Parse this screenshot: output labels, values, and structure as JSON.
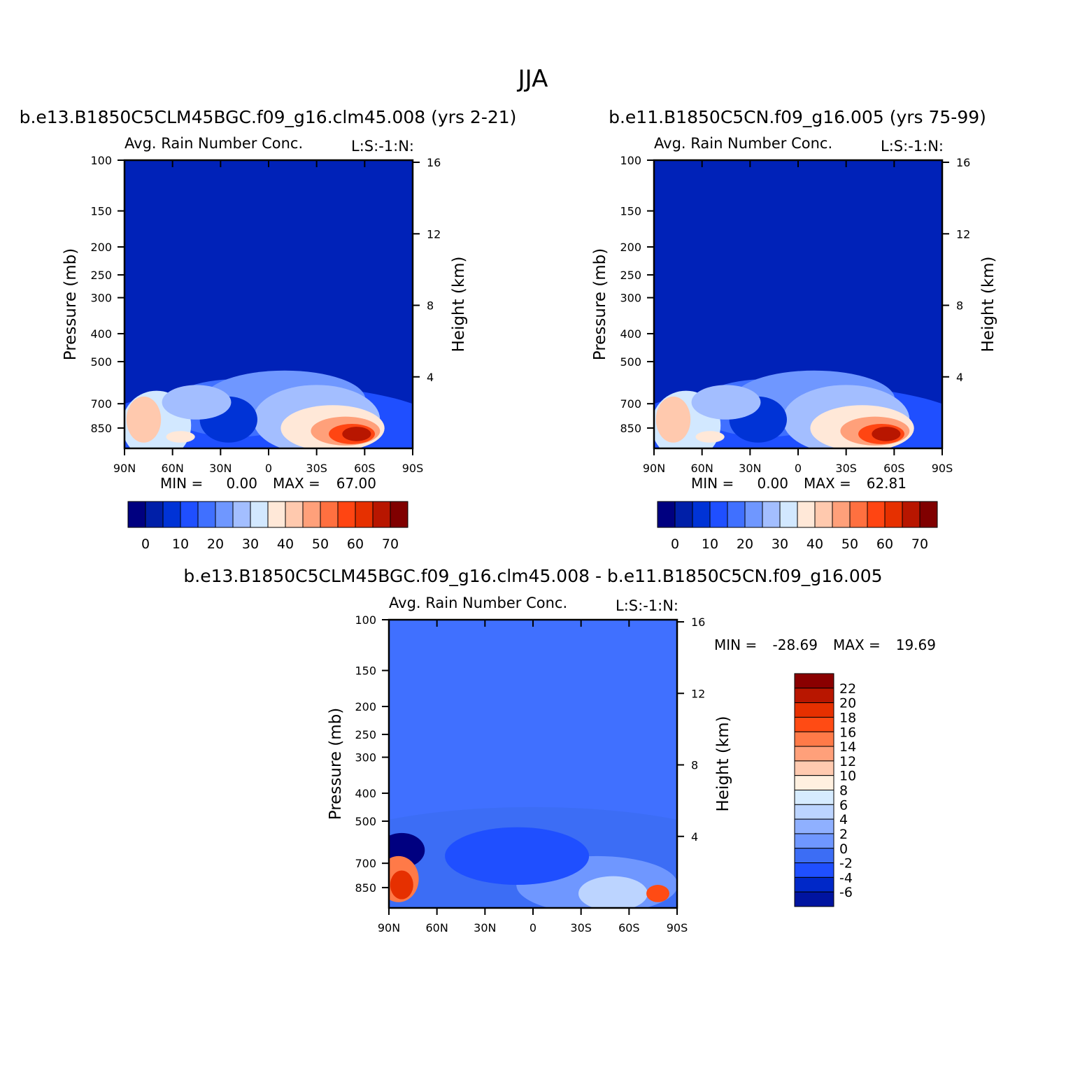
{
  "figure_title": "JJA",
  "colors": {
    "abs_scale": [
      "#000080",
      "#001fa8",
      "#0033d6",
      "#1f4fff",
      "#4070ff",
      "#6f97ff",
      "#a3beff",
      "#d2e8ff",
      "#ffe8d8",
      "#ffc9ae",
      "#ffa07a",
      "#ff7040",
      "#ff4512",
      "#e63000",
      "#b81600",
      "#800000"
    ],
    "diff_scale": [
      "#000080",
      "#0014a0",
      "#0028c8",
      "#1f4fff",
      "#3c6df5",
      "#6f97ff",
      "#8fb0ff",
      "#bcd4ff",
      "#d6ebff",
      "#fff0e0",
      "#ffcab0",
      "#ffa07a",
      "#ff7a48",
      "#ff4b14",
      "#e63000",
      "#b81600",
      "#8a0000"
    ]
  },
  "chart_data": [
    {
      "type": "heatmap",
      "title": "b.e13.B1850C5CLM45BGC.f09_g16.clm45.008 (yrs 2-21)",
      "subtitle": "Avg. Rain Number Conc.",
      "corner_label": "L:S:-1:N:",
      "ylabel": "Pressure (mb)",
      "ylabel_right": "Height (km)",
      "x_ticks": [
        "90N",
        "60N",
        "30N",
        "0",
        "30S",
        "60S",
        "90S"
      ],
      "y_ticks": [
        "100",
        "150",
        "200",
        "250",
        "300",
        "400",
        "500",
        "700",
        "850"
      ],
      "y_ticks_right": [
        "16",
        "12",
        "8",
        "4"
      ],
      "min_label": "MIN =",
      "min_value": "0.00",
      "max_label": "MAX =",
      "max_value": "67.00",
      "colorbar_labels": [
        "0",
        "10",
        "20",
        "30",
        "40",
        "50",
        "60",
        "70"
      ],
      "x_range": [
        90,
        -90
      ],
      "y_range": [
        100,
        1000
      ],
      "y_scale": "log",
      "background_level": 0
    },
    {
      "type": "heatmap",
      "title": "b.e11.B1850C5CN.f09_g16.005 (yrs 75-99)",
      "subtitle": "Avg. Rain Number Conc.",
      "corner_label": "L:S:-1:N:",
      "ylabel": "Pressure (mb)",
      "ylabel_right": "Height (km)",
      "x_ticks": [
        "90N",
        "60N",
        "30N",
        "0",
        "30S",
        "60S",
        "90S"
      ],
      "y_ticks": [
        "100",
        "150",
        "200",
        "250",
        "300",
        "400",
        "500",
        "700",
        "850"
      ],
      "y_ticks_right": [
        "16",
        "12",
        "8",
        "4"
      ],
      "min_label": "MIN =",
      "min_value": "0.00",
      "max_label": "MAX =",
      "max_value": "62.81",
      "colorbar_labels": [
        "0",
        "10",
        "20",
        "30",
        "40",
        "50",
        "60",
        "70"
      ],
      "x_range": [
        90,
        -90
      ],
      "y_range": [
        100,
        1000
      ],
      "y_scale": "log",
      "background_level": 0
    },
    {
      "type": "heatmap",
      "title": "b.e13.B1850C5CLM45BGC.f09_g16.clm45.008 - b.e11.B1850C5CN.f09_g16.005",
      "subtitle": "Avg. Rain Number Conc.",
      "corner_label": "L:S:-1:N:",
      "ylabel": "Pressure (mb)",
      "ylabel_right": "Height (km)",
      "x_ticks": [
        "90N",
        "60N",
        "30N",
        "0",
        "30S",
        "60S",
        "90S"
      ],
      "y_ticks": [
        "100",
        "150",
        "200",
        "250",
        "300",
        "400",
        "500",
        "700",
        "850"
      ],
      "y_ticks_right": [
        "16",
        "12",
        "8",
        "4"
      ],
      "min_label": "MIN =",
      "min_value": "-28.69",
      "max_label": "MAX =",
      "max_value": "19.69",
      "colorbar_labels": [
        "22",
        "20",
        "18",
        "16",
        "14",
        "12",
        "10",
        "8",
        "6",
        "4",
        "2",
        "0",
        "-2",
        "-4",
        "-6"
      ],
      "x_range": [
        90,
        -90
      ],
      "y_range": [
        100,
        1000
      ],
      "y_scale": "log",
      "background_level": 0
    }
  ]
}
